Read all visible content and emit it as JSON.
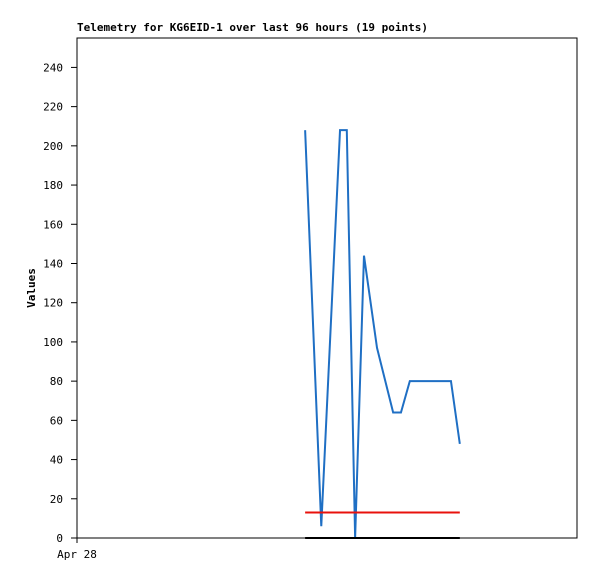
{
  "chart_data": {
    "type": "line",
    "title": "Telemetry for KG6EID-1 over last 96 hours (19 points)",
    "y_label": "Values",
    "xlim": [
      0,
      96
    ],
    "xticks": [
      {
        "value": 0,
        "label": "Apr 28"
      }
    ],
    "ylim": [
      0,
      255
    ],
    "yticks": [
      0,
      20,
      40,
      60,
      80,
      100,
      120,
      140,
      160,
      180,
      200,
      220,
      240
    ],
    "grid": false,
    "series": [
      {
        "color": "#1f6fc4",
        "x": [
          43.8,
          46.9,
          50.5,
          51.8,
          53.4,
          55.1,
          57.6,
          60.7,
          62.2,
          63.9,
          71.8,
          73.5
        ],
        "values": [
          208,
          6,
          208,
          208,
          0,
          144,
          97,
          64,
          64,
          80,
          80,
          48
        ]
      },
      {
        "color": "#e8120c",
        "x": [
          43.8,
          73.5
        ],
        "values": [
          13,
          13
        ]
      },
      {
        "color": "#000000",
        "x": [
          43.8,
          73.5
        ],
        "values": [
          0,
          0
        ]
      }
    ]
  }
}
